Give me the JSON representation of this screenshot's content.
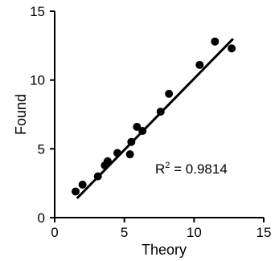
{
  "chart_data": {
    "type": "scatter",
    "xlabel": "Theory",
    "ylabel": "Found",
    "xlim": [
      0,
      15
    ],
    "ylim": [
      0,
      15
    ],
    "x_ticks": [
      "0",
      "5",
      "10",
      "15"
    ],
    "y_ticks": [
      "0",
      "5",
      "10",
      "15"
    ],
    "grid": false,
    "annotation": {
      "prefix": "R",
      "superscript": "2",
      "suffix": " = 0.9814"
    },
    "series": [
      {
        "x": [
          1.5,
          2.0,
          3.1,
          3.6,
          3.8,
          4.5,
          5.4,
          5.5,
          5.9,
          6.3,
          7.6,
          8.2,
          10.4,
          11.5,
          12.7
        ],
        "y": [
          1.9,
          2.4,
          3.0,
          3.8,
          4.1,
          4.7,
          4.6,
          5.5,
          6.6,
          6.3,
          7.7,
          9.0,
          11.1,
          12.8,
          12.3
        ]
      }
    ],
    "fit_line": {
      "x": [
        1.6,
        12.8
      ],
      "y": [
        1.4,
        13.0
      ]
    }
  }
}
